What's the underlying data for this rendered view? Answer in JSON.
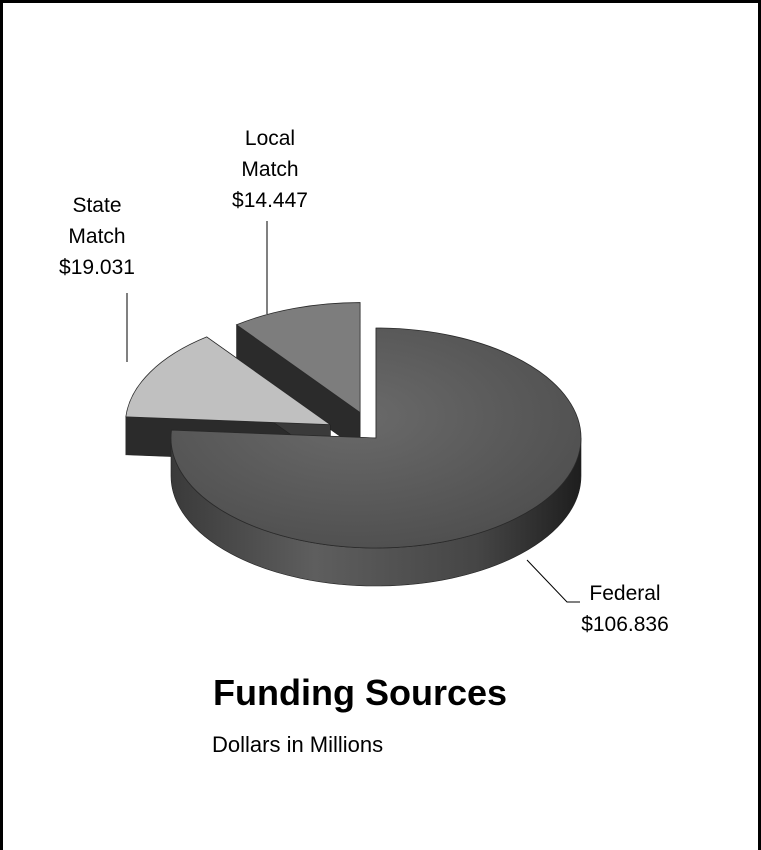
{
  "chart_data": {
    "type": "pie",
    "title": "Funding Sources",
    "subtitle": "Dollars in Millions",
    "slices": [
      {
        "name": "Federal",
        "label_lines": [
          "Federal",
          "$106.836"
        ],
        "value": 106.836,
        "color": "#5a5a5a"
      },
      {
        "name": "State Match",
        "label_lines": [
          "State",
          "Match",
          "$19.031"
        ],
        "value": 19.031,
        "color": "#c0c0c0"
      },
      {
        "name": "Local Match",
        "label_lines": [
          "Local",
          "Match",
          "$14.447"
        ],
        "value": 14.447,
        "color": "#7d7d7d"
      }
    ],
    "legend": "none",
    "style": "3d-exploded"
  }
}
